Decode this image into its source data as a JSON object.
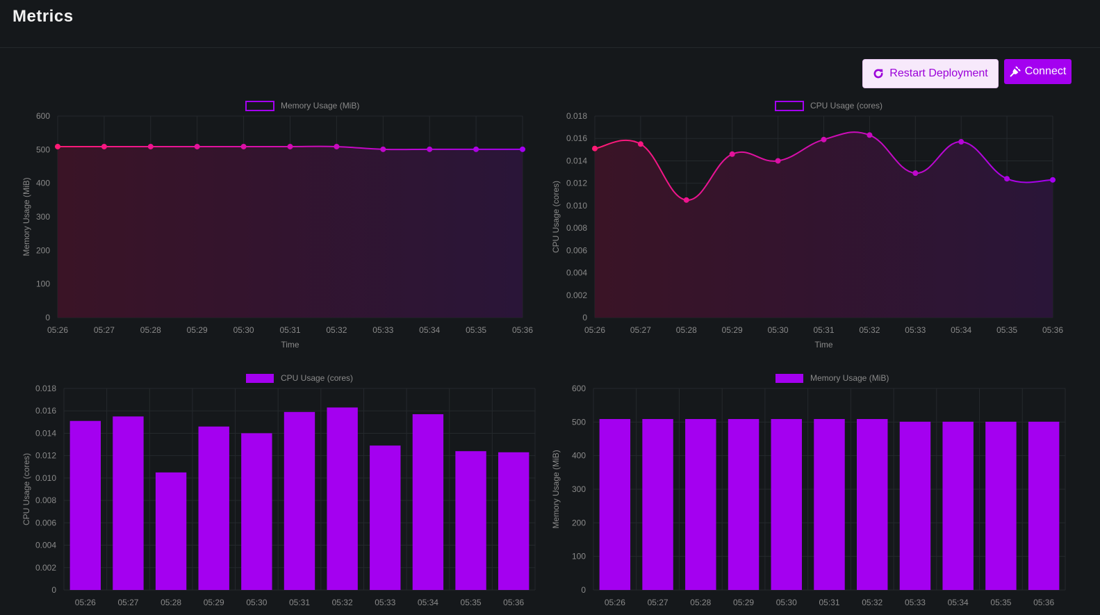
{
  "header": {
    "title": "Metrics"
  },
  "actions": {
    "restart_label": "Restart Deployment",
    "restart_icon": "refresh-icon",
    "connect_label": "Connect",
    "connect_icon": "plug-icon"
  },
  "colors": {
    "background": "#15181b",
    "accent": "#a400f0",
    "line_start": "#ff1a75",
    "line_end": "#a400f0",
    "bar": "#a400f0",
    "grid": "#25292d",
    "tick": "#8a8a8a"
  },
  "chart_data": [
    {
      "id": "memory-line-chart",
      "type": "area",
      "legend": "Memory Usage (MiB)",
      "legend_style": "outline",
      "xlabel": "Time",
      "ylabel": "Memory Usage (MiB)",
      "categories": [
        "05:26",
        "05:27",
        "05:28",
        "05:29",
        "05:30",
        "05:31",
        "05:32",
        "05:33",
        "05:34",
        "05:35",
        "05:36"
      ],
      "values": [
        509,
        509,
        509,
        509,
        509,
        509,
        509,
        501,
        501,
        501,
        501
      ],
      "ylim": [
        0,
        600
      ],
      "yticks": [
        "0",
        "100",
        "200",
        "300",
        "400",
        "500",
        "600"
      ],
      "grid": true,
      "legend_position": "top-center"
    },
    {
      "id": "cpu-line-chart",
      "type": "area",
      "legend": "CPU Usage (cores)",
      "legend_style": "outline",
      "xlabel": "Time",
      "ylabel": "CPU Usage (cores)",
      "categories": [
        "05:26",
        "05:27",
        "05:28",
        "05:29",
        "05:30",
        "05:31",
        "05:32",
        "05:33",
        "05:34",
        "05:35",
        "05:36"
      ],
      "values": [
        0.0151,
        0.0155,
        0.0105,
        0.0146,
        0.014,
        0.0159,
        0.0163,
        0.0129,
        0.0157,
        0.0124,
        0.0123
      ],
      "ylim": [
        0,
        0.018
      ],
      "yticks": [
        "0",
        "0.002",
        "0.004",
        "0.006",
        "0.008",
        "0.010",
        "0.012",
        "0.014",
        "0.016",
        "0.018"
      ],
      "grid": true,
      "legend_position": "top-center"
    },
    {
      "id": "cpu-bar-chart",
      "type": "bar",
      "legend": "CPU Usage (cores)",
      "legend_style": "filled",
      "xlabel": "",
      "ylabel": "CPU Usage (cores)",
      "categories": [
        "05:26",
        "05:27",
        "05:28",
        "05:29",
        "05:30",
        "05:31",
        "05:32",
        "05:33",
        "05:34",
        "05:35",
        "05:36"
      ],
      "values": [
        0.0151,
        0.0155,
        0.0105,
        0.0146,
        0.014,
        0.0159,
        0.0163,
        0.0129,
        0.0157,
        0.0124,
        0.0123
      ],
      "ylim": [
        0,
        0.018
      ],
      "yticks": [
        "0",
        "0.002",
        "0.004",
        "0.006",
        "0.008",
        "0.010",
        "0.012",
        "0.014",
        "0.016",
        "0.018"
      ],
      "grid": true,
      "legend_position": "top-center"
    },
    {
      "id": "memory-bar-chart",
      "type": "bar",
      "legend": "Memory Usage (MiB)",
      "legend_style": "filled",
      "xlabel": "",
      "ylabel": "Memory Usage (MiB)",
      "categories": [
        "05:26",
        "05:27",
        "05:28",
        "05:29",
        "05:30",
        "05:31",
        "05:32",
        "05:33",
        "05:34",
        "05:35",
        "05:36"
      ],
      "values": [
        509,
        509,
        509,
        509,
        509,
        509,
        509,
        501,
        501,
        501,
        501
      ],
      "ylim": [
        0,
        600
      ],
      "yticks": [
        "0",
        "100",
        "200",
        "300",
        "400",
        "500",
        "600"
      ],
      "grid": true,
      "legend_position": "top-center"
    }
  ]
}
